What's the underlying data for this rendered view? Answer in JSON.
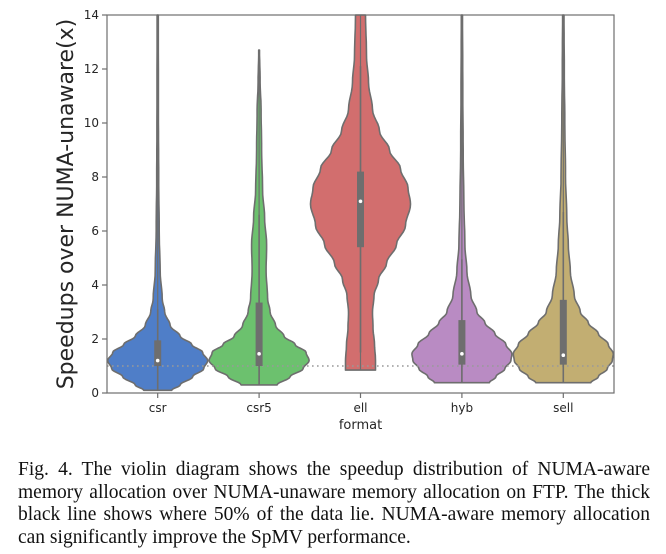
{
  "chart_data": {
    "type": "violin",
    "title": "",
    "xlabel": "format",
    "ylabel": "Speedups over NUMA-unaware(x)",
    "ylim": [
      0,
      14
    ],
    "yticks": [
      0,
      2,
      4,
      6,
      8,
      10,
      12,
      14
    ],
    "grid": false,
    "reference_line": {
      "y": 1.0,
      "style": "dotted",
      "color": "#999999"
    },
    "categories": [
      "csr",
      "csr5",
      "ell",
      "hyb",
      "sell"
    ],
    "series": [
      {
        "name": "csr",
        "color": "#4f7ec8",
        "min": 0.1,
        "max": 14,
        "q1": 1.0,
        "median": 1.2,
        "q3": 1.95,
        "whisker_low": 0.1,
        "whisker_high": 3.1,
        "density_profile": [
          [
            0.1,
            0.28
          ],
          [
            0.3,
            0.45
          ],
          [
            0.6,
            0.7
          ],
          [
            0.9,
            0.92
          ],
          [
            1.2,
            1.0
          ],
          [
            1.5,
            0.9
          ],
          [
            1.8,
            0.68
          ],
          [
            2.1,
            0.45
          ],
          [
            2.5,
            0.25
          ],
          [
            3.0,
            0.14
          ],
          [
            3.5,
            0.09
          ],
          [
            4.5,
            0.05
          ],
          [
            6,
            0.03
          ],
          [
            8,
            0.02
          ],
          [
            10,
            0.015
          ],
          [
            14,
            0.012
          ]
        ]
      },
      {
        "name": "csr5",
        "color": "#6cc16e",
        "min": 0.3,
        "max": 12.7,
        "q1": 1.0,
        "median": 1.45,
        "q3": 3.35,
        "whisker_low": 0.3,
        "whisker_high": 6.6,
        "density_profile": [
          [
            0.3,
            0.36
          ],
          [
            0.6,
            0.62
          ],
          [
            0.9,
            0.88
          ],
          [
            1.2,
            1.0
          ],
          [
            1.5,
            0.94
          ],
          [
            1.8,
            0.72
          ],
          [
            2.1,
            0.5
          ],
          [
            2.5,
            0.33
          ],
          [
            3.0,
            0.22
          ],
          [
            3.5,
            0.17
          ],
          [
            4.5,
            0.14
          ],
          [
            5.5,
            0.15
          ],
          [
            6.5,
            0.11
          ],
          [
            7.5,
            0.07
          ],
          [
            9,
            0.05
          ],
          [
            10.5,
            0.04
          ],
          [
            11.5,
            0.02
          ],
          [
            12.7,
            0.008
          ]
        ]
      },
      {
        "name": "ell",
        "color": "#d26e6e",
        "min": 0.85,
        "max": 14,
        "q1": 5.4,
        "median": 7.1,
        "q3": 8.2,
        "whisker_low": 1.5,
        "whisker_high": 12.1,
        "density_profile": [
          [
            0.85,
            0.3
          ],
          [
            1.2,
            0.3
          ],
          [
            1.8,
            0.28
          ],
          [
            2.4,
            0.25
          ],
          [
            3.0,
            0.24
          ],
          [
            3.6,
            0.27
          ],
          [
            4.2,
            0.36
          ],
          [
            4.8,
            0.52
          ],
          [
            5.5,
            0.72
          ],
          [
            6.2,
            0.9
          ],
          [
            7.0,
            1.0
          ],
          [
            7.6,
            0.95
          ],
          [
            8.3,
            0.8
          ],
          [
            9.0,
            0.58
          ],
          [
            9.7,
            0.38
          ],
          [
            10.5,
            0.24
          ],
          [
            11.5,
            0.16
          ],
          [
            12.5,
            0.12
          ],
          [
            14,
            0.1
          ]
        ]
      },
      {
        "name": "hyb",
        "color": "#b98bc3",
        "min": 0.38,
        "max": 14,
        "q1": 1.05,
        "median": 1.45,
        "q3": 2.7,
        "whisker_low": 0.38,
        "whisker_high": 4.95,
        "density_profile": [
          [
            0.38,
            0.55
          ],
          [
            0.6,
            0.68
          ],
          [
            0.9,
            0.86
          ],
          [
            1.2,
            0.98
          ],
          [
            1.45,
            1.0
          ],
          [
            1.8,
            0.88
          ],
          [
            2.2,
            0.66
          ],
          [
            2.6,
            0.46
          ],
          [
            3.0,
            0.3
          ],
          [
            3.6,
            0.18
          ],
          [
            4.5,
            0.1
          ],
          [
            5.5,
            0.06
          ],
          [
            7,
            0.04
          ],
          [
            9,
            0.025
          ],
          [
            11,
            0.018
          ],
          [
            14,
            0.012
          ]
        ]
      },
      {
        "name": "sell",
        "color": "#c2ae72",
        "min": 0.38,
        "max": 14,
        "q1": 1.05,
        "median": 1.4,
        "q3": 3.45,
        "whisker_low": 0.38,
        "whisker_high": 6.7,
        "density_profile": [
          [
            0.38,
            0.55
          ],
          [
            0.6,
            0.7
          ],
          [
            0.9,
            0.88
          ],
          [
            1.2,
            0.98
          ],
          [
            1.45,
            1.0
          ],
          [
            1.8,
            0.9
          ],
          [
            2.2,
            0.7
          ],
          [
            2.6,
            0.5
          ],
          [
            3.0,
            0.34
          ],
          [
            3.6,
            0.22
          ],
          [
            4.5,
            0.14
          ],
          [
            5.5,
            0.1
          ],
          [
            6.5,
            0.07
          ],
          [
            8,
            0.045
          ],
          [
            10,
            0.03
          ],
          [
            12,
            0.02
          ],
          [
            14,
            0.014
          ]
        ]
      }
    ]
  },
  "caption": {
    "text": "Fig. 4.   The violin diagram shows the speedup distribution of NUMA-aware memory allocation over NUMA-unaware memory allocation on FTP. The thick black line shows where 50% of the data lie. NUMA-aware memory allocation can significantly improve the SpMV performance."
  }
}
